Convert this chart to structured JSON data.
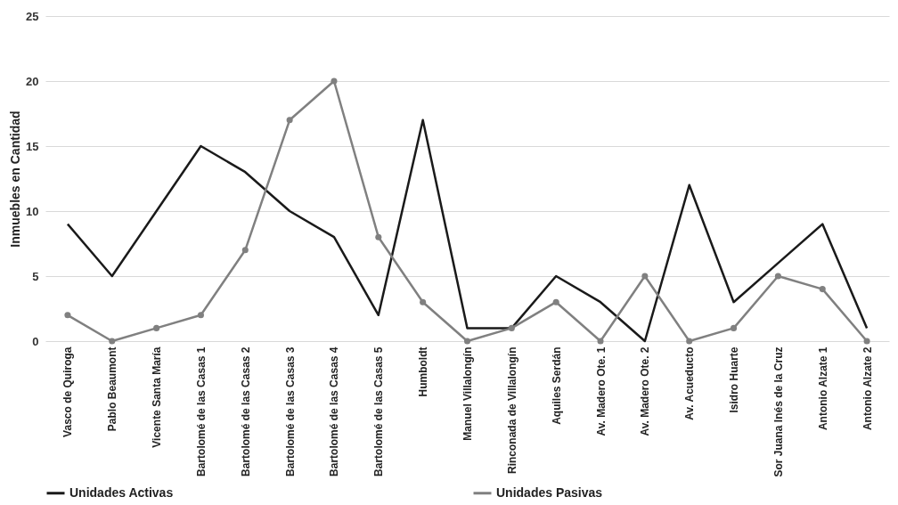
{
  "chart_data": {
    "type": "line",
    "ylabel": "Inmuebles en Cantidad",
    "categories": [
      "Vasco de Quiroga",
      "Pablo Beaumont",
      "Vicente Santa María",
      "Bartolomé de las Casas 1",
      "Bartolomé de las Casas 2",
      "Bartolomé de las Casas 3",
      "Bartolomé de las Casas 4",
      "Bartolomé de las Casas 5",
      "Humboldt",
      "Manuel Villalongín",
      "Rinconada de Villalongín",
      "Aquiles Serdán",
      "Av. Madero Ote. 1",
      "Av. Madero Ote. 2",
      "Av. Acueducto",
      "Isidro Huarte",
      "Sor Juana Inés de la Cruz",
      "Antonio Alzate 1",
      "Antonio Alzate 2"
    ],
    "series": [
      {
        "name": "Unidades Activas",
        "color": "#1a1a1a",
        "marker": "none",
        "values": [
          9,
          5,
          10,
          15,
          13,
          10,
          8,
          2,
          17,
          1,
          1,
          5,
          3,
          0,
          12,
          3,
          6,
          9,
          1
        ]
      },
      {
        "name": "Unidades Pasivas",
        "color": "#808080",
        "marker": "circle",
        "values": [
          2,
          0,
          1,
          2,
          7,
          17,
          20,
          8,
          3,
          0,
          1,
          3,
          0,
          5,
          0,
          1,
          5,
          4,
          0
        ]
      }
    ],
    "ylim": [
      0,
      25
    ],
    "yticks": [
      0,
      5,
      10,
      15,
      20,
      25
    ],
    "grid": "y",
    "legend": "bottom"
  }
}
